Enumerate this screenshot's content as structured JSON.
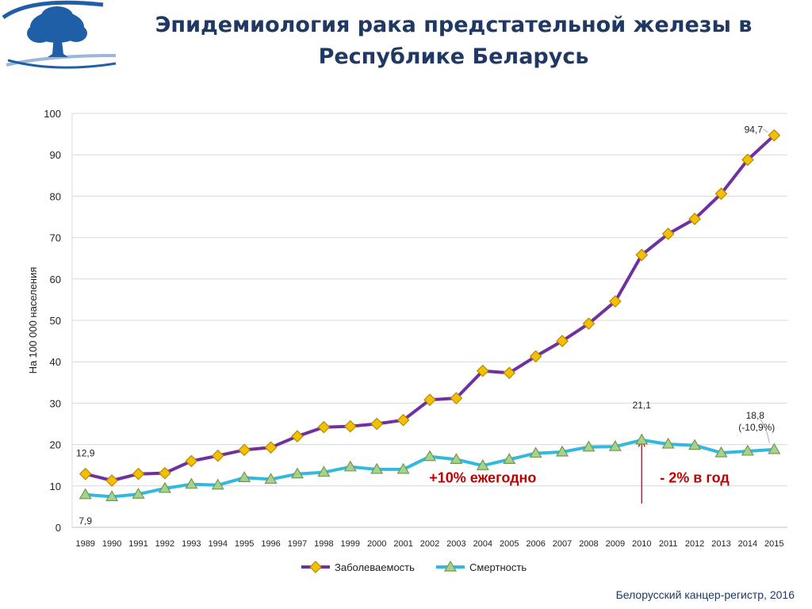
{
  "header": {
    "title_line1": "Эпидемиология рака предстательной железы в",
    "title_line2": "Республике Беларусь"
  },
  "footer": {
    "source": "Белорусский канцер-регистр, 2016"
  },
  "colors": {
    "incidence_line": "#7030a0",
    "incidence_marker": "#f5c000",
    "mortality_line": "#31b9e0",
    "mortality_marker": "#a9d18e",
    "annotation_red": "#c00000",
    "title": "#1f3864",
    "logo_blue": "#1f5fa8"
  },
  "chart_data": {
    "type": "line",
    "x": [
      "1989",
      "1990",
      "1991",
      "1992",
      "1993",
      "1994",
      "1995",
      "1996",
      "1997",
      "1998",
      "1999",
      "2000",
      "2001",
      "2002",
      "2003",
      "2004",
      "2005",
      "2006",
      "2007",
      "2008",
      "2009",
      "2010",
      "2011",
      "2012",
      "2013",
      "2014",
      "2015"
    ],
    "ylabel": "На 100 000 населения",
    "ylim": [
      0,
      100
    ],
    "yticks": [
      0,
      10,
      20,
      30,
      40,
      50,
      60,
      70,
      80,
      90,
      100
    ],
    "grid": true,
    "legend_position": "bottom",
    "series": [
      {
        "name": "Заболеваемость",
        "marker": "diamond",
        "values": [
          12.9,
          11.3,
          12.9,
          13.1,
          16.0,
          17.3,
          18.7,
          19.3,
          22.0,
          24.2,
          24.4,
          25.0,
          25.9,
          30.8,
          31.2,
          37.8,
          37.3,
          41.3,
          45.0,
          49.2,
          54.6,
          65.8,
          70.9,
          74.5,
          80.6,
          88.8,
          94.7
        ]
      },
      {
        "name": "Смертность",
        "marker": "triangle",
        "values": [
          7.9,
          7.4,
          8.0,
          9.4,
          10.4,
          10.2,
          12.0,
          11.6,
          12.9,
          13.3,
          14.6,
          14.0,
          14.0,
          17.1,
          16.4,
          14.9,
          16.4,
          17.9,
          18.2,
          19.4,
          19.5,
          21.1,
          20.1,
          19.8,
          18.0,
          18.4,
          18.8
        ]
      }
    ],
    "data_labels": [
      {
        "series": 0,
        "index": 0,
        "text": "12,9"
      },
      {
        "series": 1,
        "index": 0,
        "text": "7,9"
      },
      {
        "series": 1,
        "index": 21,
        "text": "21,1"
      },
      {
        "series": 0,
        "index": 26,
        "text": "94,7"
      },
      {
        "series": 1,
        "index": 26,
        "text": "18,8"
      },
      {
        "series": 1,
        "index": 26,
        "text": "(-10,9%)"
      }
    ],
    "annotations": [
      {
        "text": "+10% ежегодно",
        "x": "2004",
        "y": 12
      },
      {
        "text": "- 2% в год",
        "x": "2012",
        "y": 12
      }
    ],
    "marker_line": {
      "x": "2010",
      "from": 6.5,
      "to": 21.0
    }
  }
}
